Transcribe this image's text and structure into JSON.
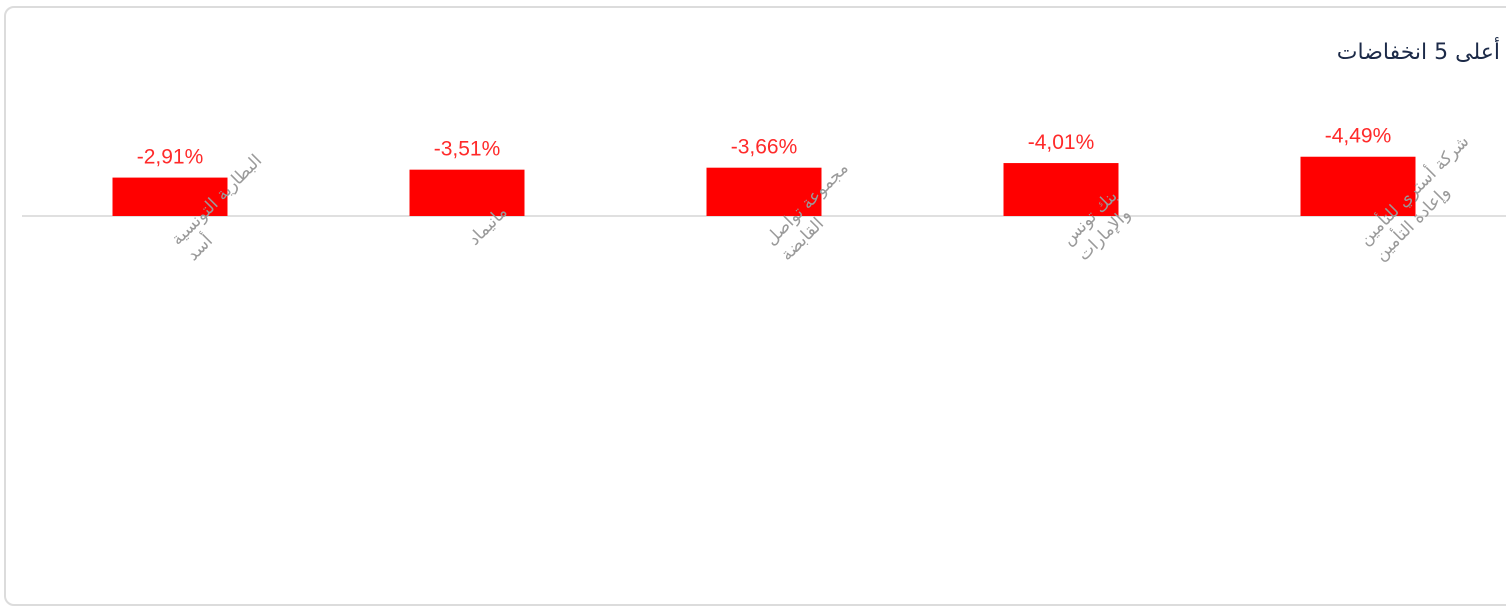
{
  "title": "أعلى 5 انخفاضات",
  "chart_data": {
    "type": "bar",
    "title": "أعلى 5 انخفاضات",
    "categories": [
      [
        "البطارية التونسية",
        "أسد"
      ],
      [
        "مانيماد"
      ],
      [
        "مجموعة تواصل",
        "القابضة"
      ],
      [
        "بنك تونس",
        "والإمارات"
      ],
      [
        "شركة أستري للتأمين",
        "وإعادة التأمين"
      ]
    ],
    "values": [
      -2.91,
      -3.51,
      -3.66,
      -4.01,
      -4.49
    ],
    "value_labels": [
      "-2,91%",
      "-3,51%",
      "-3,66%",
      "-4,01%",
      "-4,49%"
    ],
    "bar_color": "#ff0000",
    "label_color": "#ff2a2a",
    "category_label_color": "#9a9a9a",
    "axis_color": "#d6d6d6"
  }
}
